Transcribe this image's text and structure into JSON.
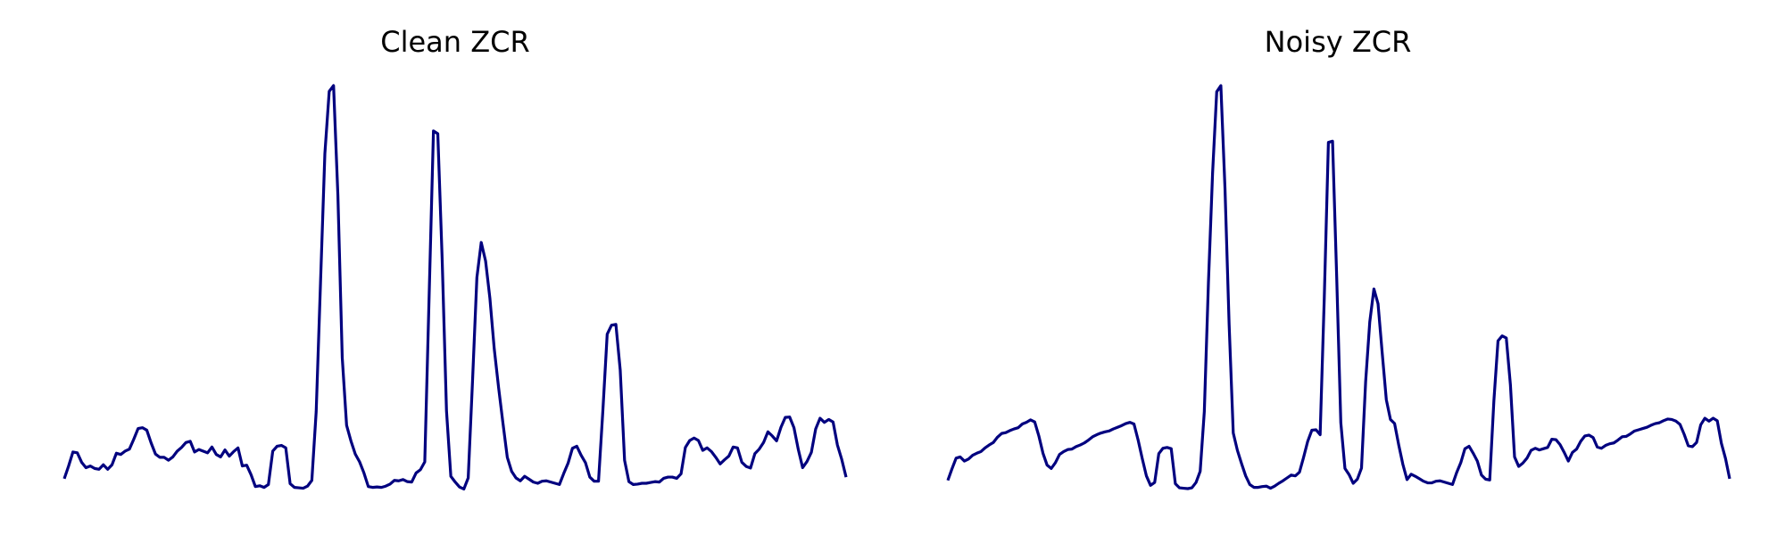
{
  "chart_data": [
    {
      "type": "line",
      "title": "Clean ZCR",
      "color": "#00007f",
      "axis": "off",
      "grid": false,
      "values": [
        0.021,
        0.052,
        0.086,
        0.084,
        0.061,
        0.048,
        0.052,
        0.046,
        0.044,
        0.055,
        0.044,
        0.055,
        0.083,
        0.08,
        0.088,
        0.093,
        0.117,
        0.143,
        0.145,
        0.139,
        0.108,
        0.081,
        0.073,
        0.073,
        0.066,
        0.074,
        0.088,
        0.097,
        0.109,
        0.112,
        0.086,
        0.092,
        0.088,
        0.084,
        0.098,
        0.08,
        0.074,
        0.091,
        0.076,
        0.087,
        0.096,
        0.052,
        0.054,
        0.031,
        0.002,
        0.004,
        0.0,
        0.007,
        0.088,
        0.1,
        0.102,
        0.096,
        0.009,
        0.0,
        -0.001,
        -0.002,
        0.003,
        0.017,
        0.184,
        0.498,
        0.811,
        0.962,
        0.976,
        0.709,
        0.315,
        0.151,
        0.113,
        0.081,
        0.062,
        0.035,
        0.002,
        0.0,
        0.001,
        0.0,
        0.003,
        0.008,
        0.017,
        0.016,
        0.019,
        0.014,
        0.013,
        0.035,
        0.043,
        0.062,
        0.463,
        0.866,
        0.859,
        0.556,
        0.186,
        0.027,
        0.013,
        0.001,
        -0.004,
        0.023,
        0.26,
        0.51,
        0.595,
        0.55,
        0.459,
        0.336,
        0.242,
        0.156,
        0.073,
        0.039,
        0.023,
        0.016,
        0.027,
        0.02,
        0.013,
        0.01,
        0.015,
        0.016,
        0.013,
        0.01,
        0.007,
        0.034,
        0.059,
        0.095,
        0.1,
        0.078,
        0.06,
        0.025,
        0.015,
        0.015,
        0.186,
        0.372,
        0.394,
        0.396,
        0.285,
        0.066,
        0.014,
        0.007,
        0.008,
        0.01,
        0.01,
        0.012,
        0.014,
        0.013,
        0.022,
        0.025,
        0.025,
        0.022,
        0.033,
        0.097,
        0.114,
        0.12,
        0.114,
        0.09,
        0.096,
        0.087,
        0.073,
        0.057,
        0.067,
        0.076,
        0.098,
        0.096,
        0.061,
        0.051,
        0.047,
        0.082,
        0.093,
        0.109,
        0.135,
        0.125,
        0.113,
        0.146,
        0.17,
        0.171,
        0.145,
        0.092,
        0.048,
        0.063,
        0.085,
        0.142,
        0.168,
        0.158,
        0.165,
        0.159,
        0.103,
        0.068,
        0.025
      ]
    },
    {
      "type": "line",
      "title": "Noisy ZCR",
      "color": "#00007f",
      "axis": "off",
      "grid": false,
      "values": [
        0.017,
        0.045,
        0.071,
        0.074,
        0.064,
        0.069,
        0.078,
        0.083,
        0.087,
        0.096,
        0.103,
        0.109,
        0.122,
        0.131,
        0.133,
        0.138,
        0.142,
        0.145,
        0.154,
        0.158,
        0.164,
        0.159,
        0.125,
        0.083,
        0.054,
        0.046,
        0.06,
        0.08,
        0.087,
        0.092,
        0.093,
        0.099,
        0.103,
        0.108,
        0.115,
        0.123,
        0.128,
        0.132,
        0.135,
        0.137,
        0.142,
        0.146,
        0.15,
        0.155,
        0.158,
        0.154,
        0.115,
        0.07,
        0.028,
        0.005,
        0.012,
        0.082,
        0.095,
        0.097,
        0.094,
        0.009,
        -0.001,
        -0.002,
        -0.003,
        -0.001,
        0.012,
        0.039,
        0.184,
        0.498,
        0.763,
        0.961,
        0.976,
        0.726,
        0.396,
        0.132,
        0.09,
        0.058,
        0.028,
        0.007,
        0.0,
        0.0,
        0.002,
        0.003,
        -0.002,
        0.003,
        0.01,
        0.016,
        0.023,
        0.03,
        0.028,
        0.037,
        0.073,
        0.112,
        0.139,
        0.14,
        0.128,
        0.46,
        0.838,
        0.841,
        0.512,
        0.157,
        0.046,
        0.031,
        0.01,
        0.02,
        0.047,
        0.257,
        0.402,
        0.482,
        0.446,
        0.327,
        0.213,
        0.165,
        0.155,
        0.103,
        0.056,
        0.019,
        0.032,
        0.027,
        0.021,
        0.015,
        0.011,
        0.011,
        0.015,
        0.016,
        0.013,
        0.01,
        0.007,
        0.036,
        0.06,
        0.094,
        0.1,
        0.083,
        0.064,
        0.03,
        0.02,
        0.018,
        0.21,
        0.356,
        0.368,
        0.363,
        0.249,
        0.074,
        0.051,
        0.059,
        0.071,
        0.09,
        0.095,
        0.091,
        0.094,
        0.097,
        0.117,
        0.116,
        0.104,
        0.085,
        0.064,
        0.085,
        0.093,
        0.112,
        0.125,
        0.127,
        0.121,
        0.098,
        0.095,
        0.102,
        0.106,
        0.108,
        0.115,
        0.123,
        0.124,
        0.13,
        0.137,
        0.14,
        0.143,
        0.146,
        0.151,
        0.155,
        0.157,
        0.162,
        0.166,
        0.165,
        0.161,
        0.153,
        0.129,
        0.101,
        0.099,
        0.109,
        0.152,
        0.168,
        0.161,
        0.168,
        0.162,
        0.107,
        0.07,
        0.021
      ]
    }
  ]
}
